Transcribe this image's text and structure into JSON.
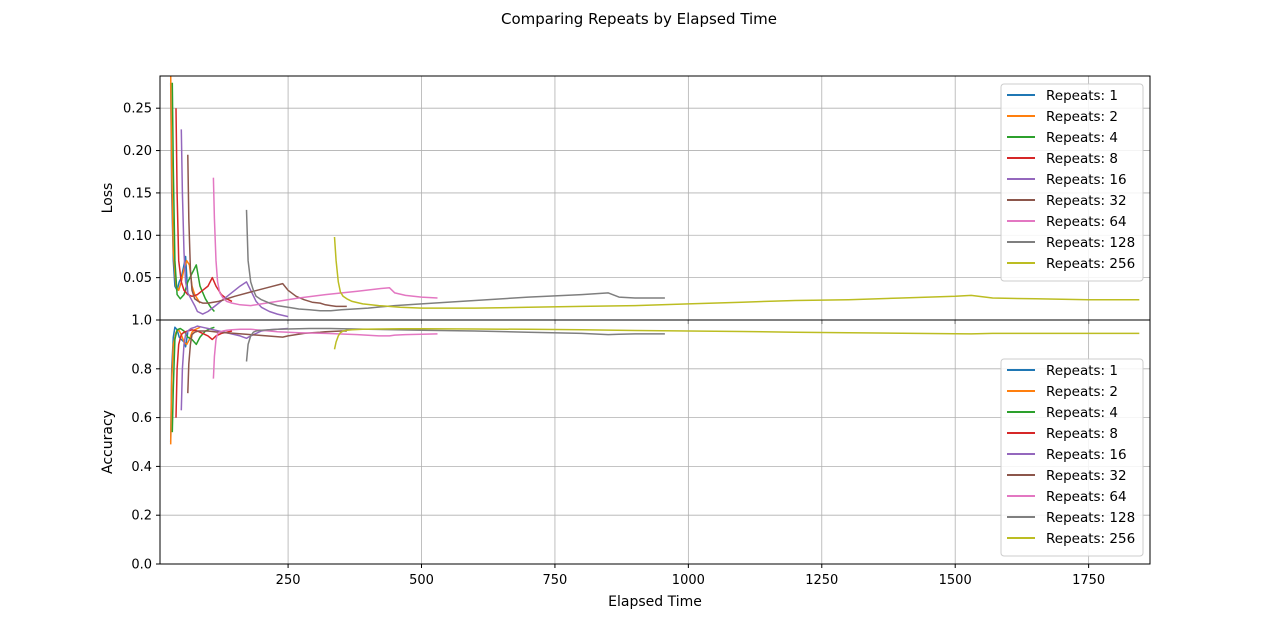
{
  "figure_title": "Comparing Repeats by Elapsed Time",
  "colors": [
    "#1f77b4",
    "#ff7f0e",
    "#2ca02c",
    "#d62728",
    "#9467bd",
    "#8c564b",
    "#e377c2",
    "#7f7f7f",
    "#bcbd22"
  ],
  "chart_data": [
    {
      "type": "line",
      "title": "",
      "xlabel": "",
      "ylabel": "Loss",
      "xlim": [
        10,
        1865
      ],
      "ylim": [
        0.0,
        0.288
      ],
      "xticks": [
        250,
        500,
        750,
        1000,
        1250,
        1500,
        1750
      ],
      "xtick_labels": [
        "",
        "",
        "",
        "",
        "",
        "",
        ""
      ],
      "yticks": [
        0.05,
        0.1,
        0.15,
        0.2,
        0.25
      ],
      "ytick_labels": [
        "0.05",
        "0.10",
        "0.15",
        "0.20",
        "0.25"
      ],
      "grid": true,
      "legend_position": "upper right",
      "series": [
        {
          "name": "Repeats: 1",
          "x": [
            30,
            32,
            35,
            38,
            42,
            46,
            50,
            55,
            58,
            62
          ],
          "y": [
            0.28,
            0.15,
            0.07,
            0.04,
            0.035,
            0.045,
            0.05,
            0.065,
            0.075,
            0.03
          ]
        },
        {
          "name": "Repeats: 2",
          "x": [
            30,
            32,
            35,
            40,
            45,
            50,
            55,
            60,
            65,
            70,
            75,
            80,
            85
          ],
          "y": [
            0.29,
            0.18,
            0.08,
            0.04,
            0.035,
            0.045,
            0.06,
            0.07,
            0.065,
            0.04,
            0.03,
            0.025,
            0.02
          ]
        },
        {
          "name": "Repeats: 4",
          "x": [
            33,
            35,
            38,
            42,
            48,
            55,
            62,
            70,
            78,
            85,
            95,
            105,
            112
          ],
          "y": [
            0.28,
            0.18,
            0.07,
            0.03,
            0.025,
            0.03,
            0.045,
            0.055,
            0.065,
            0.04,
            0.025,
            0.015,
            0.01
          ]
        },
        {
          "name": "Repeats: 8",
          "x": [
            40,
            42,
            45,
            50,
            55,
            62,
            70,
            80,
            90,
            100,
            108,
            115,
            125,
            135,
            145
          ],
          "y": [
            0.25,
            0.15,
            0.07,
            0.045,
            0.035,
            0.03,
            0.028,
            0.03,
            0.035,
            0.04,
            0.05,
            0.04,
            0.03,
            0.025,
            0.022
          ]
        },
        {
          "name": "Repeats: 16",
          "x": [
            50,
            52,
            55,
            58,
            62,
            68,
            75,
            80,
            90,
            100,
            120,
            140,
            160,
            172,
            180,
            190,
            200,
            215,
            230,
            250
          ],
          "y": [
            0.225,
            0.15,
            0.08,
            0.045,
            0.032,
            0.025,
            0.017,
            0.01,
            0.007,
            0.01,
            0.02,
            0.03,
            0.04,
            0.045,
            0.035,
            0.022,
            0.015,
            0.01,
            0.007,
            0.004
          ]
        },
        {
          "name": "Repeats: 32",
          "x": [
            62,
            64,
            67,
            70,
            75,
            82,
            90,
            100,
            120,
            150,
            180,
            210,
            240,
            250,
            265,
            280,
            295,
            310,
            320,
            330,
            340,
            350,
            360
          ],
          "y": [
            0.195,
            0.12,
            0.06,
            0.035,
            0.025,
            0.022,
            0.02,
            0.02,
            0.022,
            0.028,
            0.033,
            0.038,
            0.043,
            0.035,
            0.028,
            0.024,
            0.021,
            0.02,
            0.018,
            0.017,
            0.016,
            0.016,
            0.016
          ]
        },
        {
          "name": "Repeats: 64",
          "x": [
            110,
            112,
            115,
            118,
            122,
            128,
            135,
            145,
            160,
            180,
            200,
            230,
            270,
            320,
            380,
            420,
            440,
            450,
            470,
            500,
            530
          ],
          "y": [
            0.168,
            0.12,
            0.07,
            0.045,
            0.032,
            0.026,
            0.022,
            0.02,
            0.018,
            0.017,
            0.019,
            0.022,
            0.026,
            0.03,
            0.034,
            0.037,
            0.038,
            0.032,
            0.029,
            0.027,
            0.026
          ]
        },
        {
          "name": "Repeats: 128",
          "x": [
            172,
            175,
            180,
            185,
            190,
            200,
            215,
            230,
            250,
            270,
            290,
            310,
            330,
            350,
            400,
            450,
            500,
            600,
            700,
            800,
            850,
            870,
            900,
            956
          ],
          "y": [
            0.13,
            0.07,
            0.045,
            0.035,
            0.028,
            0.024,
            0.02,
            0.017,
            0.015,
            0.013,
            0.012,
            0.011,
            0.011,
            0.012,
            0.014,
            0.017,
            0.019,
            0.023,
            0.027,
            0.03,
            0.032,
            0.027,
            0.026,
            0.026
          ]
        },
        {
          "name": "Repeats: 256",
          "x": [
            337,
            340,
            344,
            348,
            353,
            360,
            370,
            390,
            420,
            460,
            500,
            600,
            700,
            800,
            900,
            1000,
            1100,
            1200,
            1300,
            1400,
            1500,
            1530,
            1570,
            1650,
            1750,
            1845
          ],
          "y": [
            0.098,
            0.07,
            0.045,
            0.033,
            0.028,
            0.025,
            0.022,
            0.019,
            0.017,
            0.015,
            0.014,
            0.014,
            0.015,
            0.016,
            0.017,
            0.019,
            0.021,
            0.023,
            0.024,
            0.026,
            0.028,
            0.029,
            0.026,
            0.025,
            0.024,
            0.024
          ]
        }
      ]
    },
    {
      "type": "line",
      "title": "",
      "xlabel": "Elapsed Time",
      "ylabel": "Accuracy",
      "xlim": [
        10,
        1865
      ],
      "ylim": [
        0.0,
        1.0
      ],
      "xticks": [
        250,
        500,
        750,
        1000,
        1250,
        1500,
        1750
      ],
      "xtick_labels": [
        "250",
        "500",
        "750",
        "1000",
        "1250",
        "1500",
        "1750"
      ],
      "yticks": [
        0.0,
        0.2,
        0.4,
        0.6,
        0.8,
        1.0
      ],
      "ytick_labels": [
        "0.0",
        "0.2",
        "0.4",
        "0.6",
        "0.8",
        "1.0"
      ],
      "grid": true,
      "legend_position": "lower right",
      "series": [
        {
          "name": "Repeats: 1",
          "x": [
            30,
            32,
            35,
            38,
            42,
            46,
            50,
            55,
            58,
            62
          ],
          "y": [
            0.5,
            0.8,
            0.93,
            0.97,
            0.96,
            0.93,
            0.92,
            0.91,
            0.89,
            0.95
          ]
        },
        {
          "name": "Repeats: 2",
          "x": [
            30,
            32,
            35,
            40,
            45,
            50,
            55,
            60,
            65,
            70,
            75,
            80,
            85
          ],
          "y": [
            0.49,
            0.75,
            0.9,
            0.95,
            0.96,
            0.94,
            0.91,
            0.9,
            0.92,
            0.95,
            0.96,
            0.965,
            0.97
          ]
        },
        {
          "name": "Repeats: 4",
          "x": [
            33,
            35,
            38,
            42,
            48,
            55,
            62,
            70,
            78,
            85,
            95,
            105,
            112
          ],
          "y": [
            0.54,
            0.72,
            0.92,
            0.96,
            0.965,
            0.955,
            0.93,
            0.92,
            0.9,
            0.93,
            0.955,
            0.965,
            0.97
          ]
        },
        {
          "name": "Repeats: 8",
          "x": [
            40,
            42,
            45,
            50,
            55,
            62,
            70,
            80,
            90,
            100,
            108,
            115,
            125,
            135,
            145
          ],
          "y": [
            0.6,
            0.8,
            0.9,
            0.94,
            0.95,
            0.955,
            0.96,
            0.955,
            0.945,
            0.935,
            0.92,
            0.935,
            0.945,
            0.95,
            0.955
          ]
        },
        {
          "name": "Repeats: 16",
          "x": [
            50,
            52,
            55,
            58,
            62,
            68,
            75,
            80,
            90,
            100,
            120,
            140,
            160,
            172,
            180,
            190,
            200,
            215,
            230,
            250
          ],
          "y": [
            0.63,
            0.8,
            0.9,
            0.94,
            0.955,
            0.965,
            0.97,
            0.975,
            0.97,
            0.965,
            0.955,
            0.945,
            0.935,
            0.925,
            0.935,
            0.945,
            0.955,
            0.96,
            0.962,
            0.965
          ]
        },
        {
          "name": "Repeats: 32",
          "x": [
            62,
            64,
            67,
            70,
            75,
            82,
            90,
            100,
            120,
            150,
            180,
            210,
            240,
            250,
            265,
            280,
            295,
            310,
            320,
            330,
            340,
            350,
            360
          ],
          "y": [
            0.7,
            0.82,
            0.9,
            0.94,
            0.95,
            0.955,
            0.955,
            0.955,
            0.95,
            0.945,
            0.94,
            0.935,
            0.93,
            0.935,
            0.94,
            0.945,
            0.948,
            0.95,
            0.952,
            0.953,
            0.954,
            0.955,
            0.955
          ]
        },
        {
          "name": "Repeats: 64",
          "x": [
            110,
            112,
            115,
            118,
            122,
            128,
            135,
            145,
            160,
            180,
            200,
            230,
            270,
            320,
            380,
            420,
            440,
            450,
            470,
            500,
            530
          ],
          "y": [
            0.76,
            0.85,
            0.92,
            0.945,
            0.95,
            0.955,
            0.958,
            0.96,
            0.962,
            0.962,
            0.958,
            0.952,
            0.948,
            0.945,
            0.94,
            0.935,
            0.935,
            0.938,
            0.94,
            0.942,
            0.943
          ]
        },
        {
          "name": "Repeats: 128",
          "x": [
            172,
            175,
            180,
            185,
            190,
            200,
            215,
            230,
            250,
            270,
            290,
            310,
            330,
            350,
            400,
            450,
            500,
            600,
            700,
            800,
            850,
            870,
            900,
            956
          ],
          "y": [
            0.83,
            0.9,
            0.935,
            0.95,
            0.955,
            0.958,
            0.96,
            0.962,
            0.963,
            0.964,
            0.965,
            0.965,
            0.965,
            0.964,
            0.962,
            0.96,
            0.958,
            0.955,
            0.95,
            0.945,
            0.94,
            0.942,
            0.943,
            0.943
          ]
        },
        {
          "name": "Repeats: 256",
          "x": [
            337,
            340,
            344,
            348,
            353,
            360,
            370,
            390,
            420,
            460,
            500,
            600,
            700,
            800,
            900,
            1000,
            1100,
            1200,
            1300,
            1400,
            1500,
            1530,
            1570,
            1650,
            1750,
            1845
          ],
          "y": [
            0.88,
            0.91,
            0.935,
            0.948,
            0.955,
            0.958,
            0.96,
            0.962,
            0.963,
            0.964,
            0.964,
            0.963,
            0.962,
            0.96,
            0.957,
            0.955,
            0.953,
            0.95,
            0.948,
            0.946,
            0.944,
            0.943,
            0.945,
            0.945,
            0.945,
            0.945
          ]
        }
      ]
    }
  ]
}
